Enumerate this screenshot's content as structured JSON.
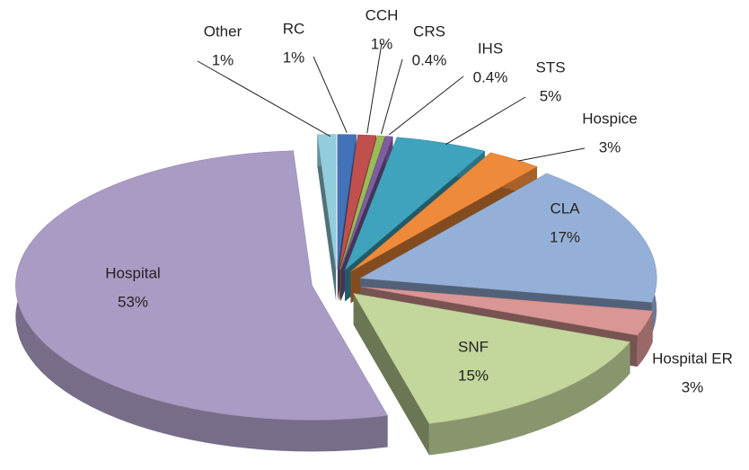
{
  "chart_data": {
    "type": "pie",
    "style": "3d-exploded",
    "categories": [
      "RC",
      "CCH",
      "CRS",
      "IHS",
      "STS",
      "Hospice",
      "CLA",
      "Hospital ER",
      "SNF",
      "Hospital",
      "Other"
    ],
    "values": [
      1,
      1,
      0.4,
      0.4,
      5,
      3,
      17,
      3,
      15,
      53,
      1
    ],
    "value_labels": [
      "1%",
      "1%",
      "0.4%",
      "0.4%",
      "5%",
      "3%",
      "17%",
      "3%",
      "15%",
      "53%",
      "1%"
    ],
    "colors": [
      "#4472b8",
      "#c0504d",
      "#9bbb59",
      "#7d5ea3",
      "#3fa3bd",
      "#ee8a3a",
      "#95b0d8",
      "#d99694",
      "#c3d69b",
      "#aa9bc4",
      "#93cddd"
    ]
  }
}
